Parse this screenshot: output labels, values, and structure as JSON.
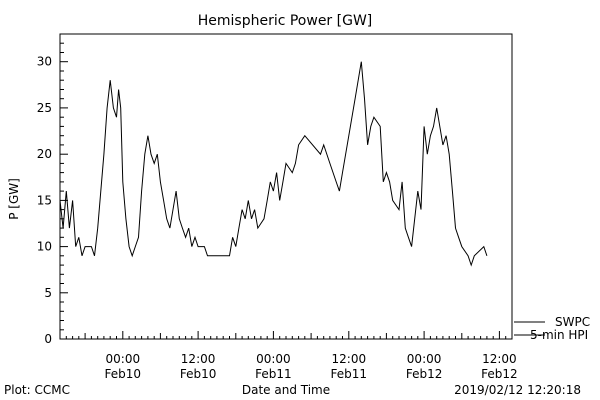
{
  "chart_data": {
    "type": "line",
    "title": "Hemispheric Power [GW]",
    "xlabel": "Date and Time",
    "ylabel": "P [GW]",
    "ylim": [
      0,
      33
    ],
    "yticks": [
      "0",
      "5",
      "10",
      "15",
      "20",
      "25",
      "30"
    ],
    "xlim": [
      "2019-02-09T14:00",
      "2019-02-12T14:00"
    ],
    "xticks": [
      {
        "time": "00:00",
        "date": "Feb10",
        "at": "2019-02-10T00:00"
      },
      {
        "time": "12:00",
        "date": "Feb10",
        "at": "2019-02-10T12:00"
      },
      {
        "time": "00:00",
        "date": "Feb11",
        "at": "2019-02-11T00:00"
      },
      {
        "time": "12:00",
        "date": "Feb11",
        "at": "2019-02-11T12:00"
      },
      {
        "time": "00:00",
        "date": "Feb12",
        "at": "2019-02-12T00:00"
      },
      {
        "time": "12:00",
        "date": "Feb12",
        "at": "2019-02-12T12:00"
      }
    ],
    "grid": false,
    "legend_position": "lower-right outside",
    "series": [
      {
        "name": "SWPC",
        "color": "#000000",
        "points": [
          [
            "2019-02-09T14:00",
            15
          ],
          [
            "2019-02-09T14:30",
            12
          ],
          [
            "2019-02-09T15:00",
            16
          ],
          [
            "2019-02-09T15:30",
            12
          ],
          [
            "2019-02-09T16:00",
            15
          ],
          [
            "2019-02-09T16:30",
            10
          ],
          [
            "2019-02-09T17:00",
            11
          ],
          [
            "2019-02-09T17:30",
            9
          ],
          [
            "2019-02-09T18:00",
            10
          ],
          [
            "2019-02-09T19:00",
            10
          ],
          [
            "2019-02-09T19:30",
            9
          ],
          [
            "2019-02-09T20:00",
            12
          ],
          [
            "2019-02-09T20:30",
            16
          ],
          [
            "2019-02-09T21:00",
            20
          ],
          [
            "2019-02-09T21:30",
            25
          ],
          [
            "2019-02-09T22:00",
            28
          ],
          [
            "2019-02-09T22:30",
            25
          ],
          [
            "2019-02-09T23:00",
            24
          ],
          [
            "2019-02-09T23:20",
            27
          ],
          [
            "2019-02-09T23:40",
            25
          ],
          [
            "2019-02-10T00:00",
            17
          ],
          [
            "2019-02-10T00:30",
            13
          ],
          [
            "2019-02-10T01:00",
            10
          ],
          [
            "2019-02-10T01:30",
            9
          ],
          [
            "2019-02-10T02:00",
            10
          ],
          [
            "2019-02-10T02:30",
            11
          ],
          [
            "2019-02-10T03:00",
            16
          ],
          [
            "2019-02-10T03:30",
            20
          ],
          [
            "2019-02-10T04:00",
            22
          ],
          [
            "2019-02-10T04:30",
            20
          ],
          [
            "2019-02-10T05:00",
            19
          ],
          [
            "2019-02-10T05:30",
            20
          ],
          [
            "2019-02-10T06:00",
            17
          ],
          [
            "2019-02-10T06:30",
            15
          ],
          [
            "2019-02-10T07:00",
            13
          ],
          [
            "2019-02-10T07:30",
            12
          ],
          [
            "2019-02-10T08:00",
            14
          ],
          [
            "2019-02-10T08:30",
            16
          ],
          [
            "2019-02-10T09:00",
            13
          ],
          [
            "2019-02-10T09:30",
            12
          ],
          [
            "2019-02-10T10:00",
            11
          ],
          [
            "2019-02-10T10:30",
            12
          ],
          [
            "2019-02-10T11:00",
            10
          ],
          [
            "2019-02-10T11:30",
            11
          ],
          [
            "2019-02-10T12:00",
            10
          ],
          [
            "2019-02-10T13:00",
            10
          ],
          [
            "2019-02-10T13:30",
            9
          ],
          [
            "2019-02-10T17:00",
            9
          ],
          [
            "2019-02-10T17:30",
            11
          ],
          [
            "2019-02-10T18:00",
            10
          ],
          [
            "2019-02-10T18:30",
            12
          ],
          [
            "2019-02-10T19:00",
            14
          ],
          [
            "2019-02-10T19:30",
            13
          ],
          [
            "2019-02-10T20:00",
            15
          ],
          [
            "2019-02-10T20:30",
            13
          ],
          [
            "2019-02-10T21:00",
            14
          ],
          [
            "2019-02-10T21:30",
            12
          ],
          [
            "2019-02-10T22:30",
            13
          ],
          [
            "2019-02-10T23:00",
            15
          ],
          [
            "2019-02-10T23:30",
            17
          ],
          [
            "2019-02-11T00:00",
            16
          ],
          [
            "2019-02-11T00:30",
            18
          ],
          [
            "2019-02-11T01:00",
            15
          ],
          [
            "2019-02-11T01:30",
            17
          ],
          [
            "2019-02-11T02:00",
            19
          ],
          [
            "2019-02-11T03:00",
            18
          ],
          [
            "2019-02-11T03:30",
            19
          ],
          [
            "2019-02-11T04:00",
            21
          ],
          [
            "2019-02-11T05:00",
            22
          ],
          [
            "2019-02-11T07:30",
            20
          ],
          [
            "2019-02-11T08:00",
            21
          ],
          [
            "2019-02-11T09:00",
            19
          ],
          [
            "2019-02-11T10:00",
            17
          ],
          [
            "2019-02-11T10:30",
            16
          ],
          [
            "2019-02-11T11:00",
            18
          ],
          [
            "2019-02-11T12:00",
            22
          ],
          [
            "2019-02-11T13:00",
            26
          ],
          [
            "2019-02-11T13:30",
            28
          ],
          [
            "2019-02-11T14:00",
            30
          ],
          [
            "2019-02-11T14:30",
            26
          ],
          [
            "2019-02-11T15:00",
            21
          ],
          [
            "2019-02-11T15:30",
            23
          ],
          [
            "2019-02-11T16:00",
            24
          ],
          [
            "2019-02-11T17:00",
            23
          ],
          [
            "2019-02-11T17:30",
            17
          ],
          [
            "2019-02-11T18:00",
            18
          ],
          [
            "2019-02-11T18:30",
            17
          ],
          [
            "2019-02-11T19:00",
            15
          ],
          [
            "2019-02-11T20:00",
            14
          ],
          [
            "2019-02-11T20:30",
            17
          ],
          [
            "2019-02-11T21:00",
            12
          ],
          [
            "2019-02-11T21:30",
            11
          ],
          [
            "2019-02-11T22:00",
            10
          ],
          [
            "2019-02-11T22:30",
            13
          ],
          [
            "2019-02-11T23:00",
            16
          ],
          [
            "2019-02-11T23:30",
            14
          ],
          [
            "2019-02-12T00:00",
            23
          ],
          [
            "2019-02-12T00:30",
            20
          ],
          [
            "2019-02-12T01:00",
            22
          ],
          [
            "2019-02-12T01:30",
            23
          ],
          [
            "2019-02-12T02:00",
            25
          ],
          [
            "2019-02-12T02:30",
            23
          ],
          [
            "2019-02-12T03:00",
            21
          ],
          [
            "2019-02-12T03:30",
            22
          ],
          [
            "2019-02-12T04:00",
            20
          ],
          [
            "2019-02-12T04:30",
            16
          ],
          [
            "2019-02-12T05:00",
            12
          ],
          [
            "2019-02-12T05:30",
            11
          ],
          [
            "2019-02-12T06:00",
            10
          ],
          [
            "2019-02-12T07:00",
            9
          ],
          [
            "2019-02-12T07:30",
            8
          ],
          [
            "2019-02-12T08:00",
            9
          ],
          [
            "2019-02-12T09:30",
            10
          ],
          [
            "2019-02-12T10:00",
            9
          ]
        ]
      },
      {
        "name": "5-min HPI",
        "color": "#000000",
        "points": []
      }
    ]
  },
  "footer": {
    "left": "Plot: CCMC",
    "right": "2019/02/12 12:20:18"
  }
}
